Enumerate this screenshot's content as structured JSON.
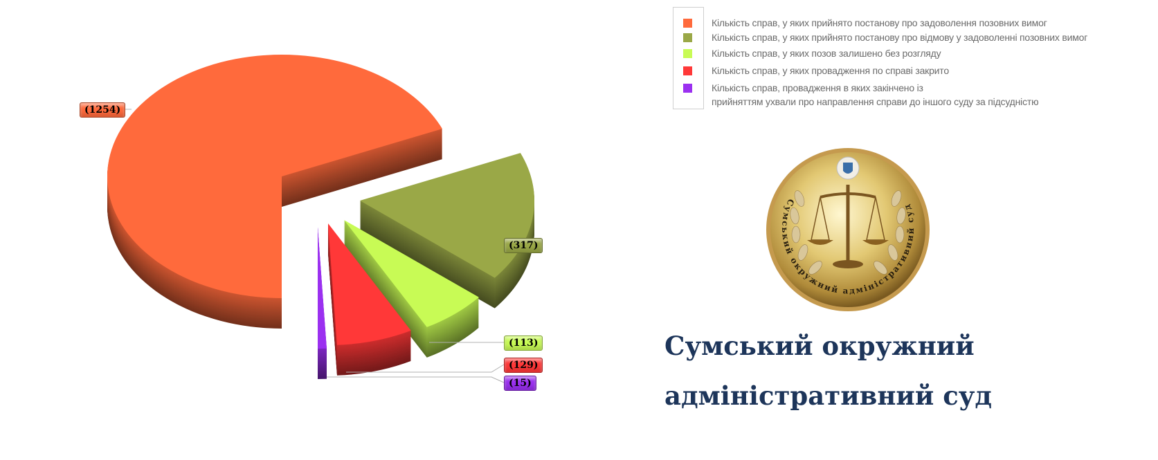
{
  "chart_data": {
    "type": "pie",
    "style": "3d-exploded",
    "title": "",
    "series": [
      {
        "name": "Кількість справ, у  яких прийнято постанову про задоволення позовних вимог",
        "value": 1254,
        "label": "(1254)",
        "color": "#ff6a3c"
      },
      {
        "name": "Кількість справ, у  яких прийнято постанову про відмову у задоволенні позовних вимог",
        "value": 317,
        "label": "(317)",
        "color": "#9aa847"
      },
      {
        "name": "Кількість справ, у яких позов залишено без розгляду",
        "value": 113,
        "label": "(113)",
        "color": "#c8fb55"
      },
      {
        "name": "Кількість справ, у яких провадження по справі закрито",
        "value": 129,
        "label": "(129)",
        "color": "#ff3838"
      },
      {
        "name": "Кількість справ, провадження в яких закінчено із прийняттям ухвали про направлення  справи до іншого суду за підсудністю",
        "name_lines": [
          "Кількість справ, провадження в яких закінчено із",
          "прийняттям ухвали про направлення  справи до іншого суду за підсудністю"
        ],
        "value": 15,
        "label": "(15)",
        "color": "#9b30f0"
      }
    ],
    "legend_position": "top-right"
  },
  "seal": {
    "text": "Сумський окружний адміністративний суд"
  },
  "title": {
    "line1": "Сумський окружний",
    "line2": "адміністративний суд"
  }
}
